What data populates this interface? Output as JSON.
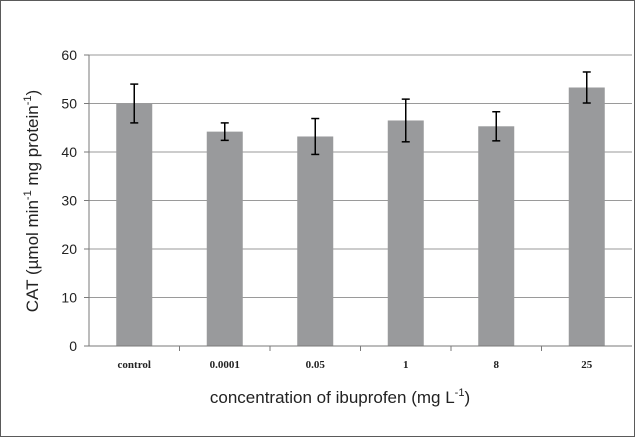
{
  "chart_data": {
    "type": "bar",
    "categories": [
      "control",
      "0.0001",
      "0.05",
      "1",
      "8",
      "25"
    ],
    "series": [
      {
        "values": [
          50.0,
          44.2,
          43.2,
          46.5,
          45.3,
          53.3
        ],
        "error": [
          4.0,
          1.8,
          3.7,
          4.4,
          3.0,
          3.2
        ]
      }
    ],
    "ylim": [
      0,
      60
    ],
    "yticks": [
      "0",
      "10",
      "20",
      "30",
      "40",
      "50",
      "60"
    ],
    "xlabel": {
      "main": "concentration of ibuprofen (mg L",
      "sup": "-1",
      "end": ")"
    },
    "ylabel": {
      "a": "CAT (µmol min",
      "sup1": "-1",
      "b": " mg protein",
      "sup2": "-1",
      "c": ")"
    },
    "grid": true,
    "colors": {
      "bar": "#999a9c",
      "grid": "#9a9a9a",
      "axis": "#7a7a7a",
      "error": "#000000"
    }
  }
}
